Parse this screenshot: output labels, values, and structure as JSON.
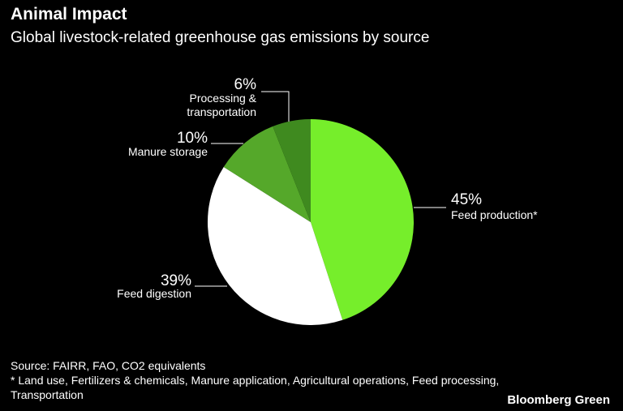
{
  "header": {
    "title": "Animal Impact",
    "subtitle": "Global livestock-related greenhouse gas emissions by source"
  },
  "footer": {
    "source": "Source: FAIRR, FAO, CO2 equivalents",
    "note_line1": "* Land use, Fertilizers & chemicals, Manure application, Agricultural operations, Feed processing,",
    "note_line2": "Transportation",
    "brand": "Bloomberg Green"
  },
  "chart_data": {
    "type": "pie",
    "title": "Animal Impact",
    "subtitle": "Global livestock-related greenhouse gas emissions by source",
    "slices": [
      {
        "label": "Feed production*",
        "value": 45,
        "pct_label": "45%",
        "color": "#76ee2b"
      },
      {
        "label": "Feed digestion",
        "value": 39,
        "pct_label": "39%",
        "color": "#ffffff"
      },
      {
        "label": "Manure storage",
        "value": 10,
        "pct_label": "10%",
        "color": "#55a82a"
      },
      {
        "label": "Processing & transportation",
        "label_lines": [
          "Processing &",
          "transportation"
        ],
        "value": 6,
        "pct_label": "6%",
        "color": "#3f8a1f"
      }
    ],
    "start_angle_deg": 0,
    "direction": "clockwise"
  }
}
